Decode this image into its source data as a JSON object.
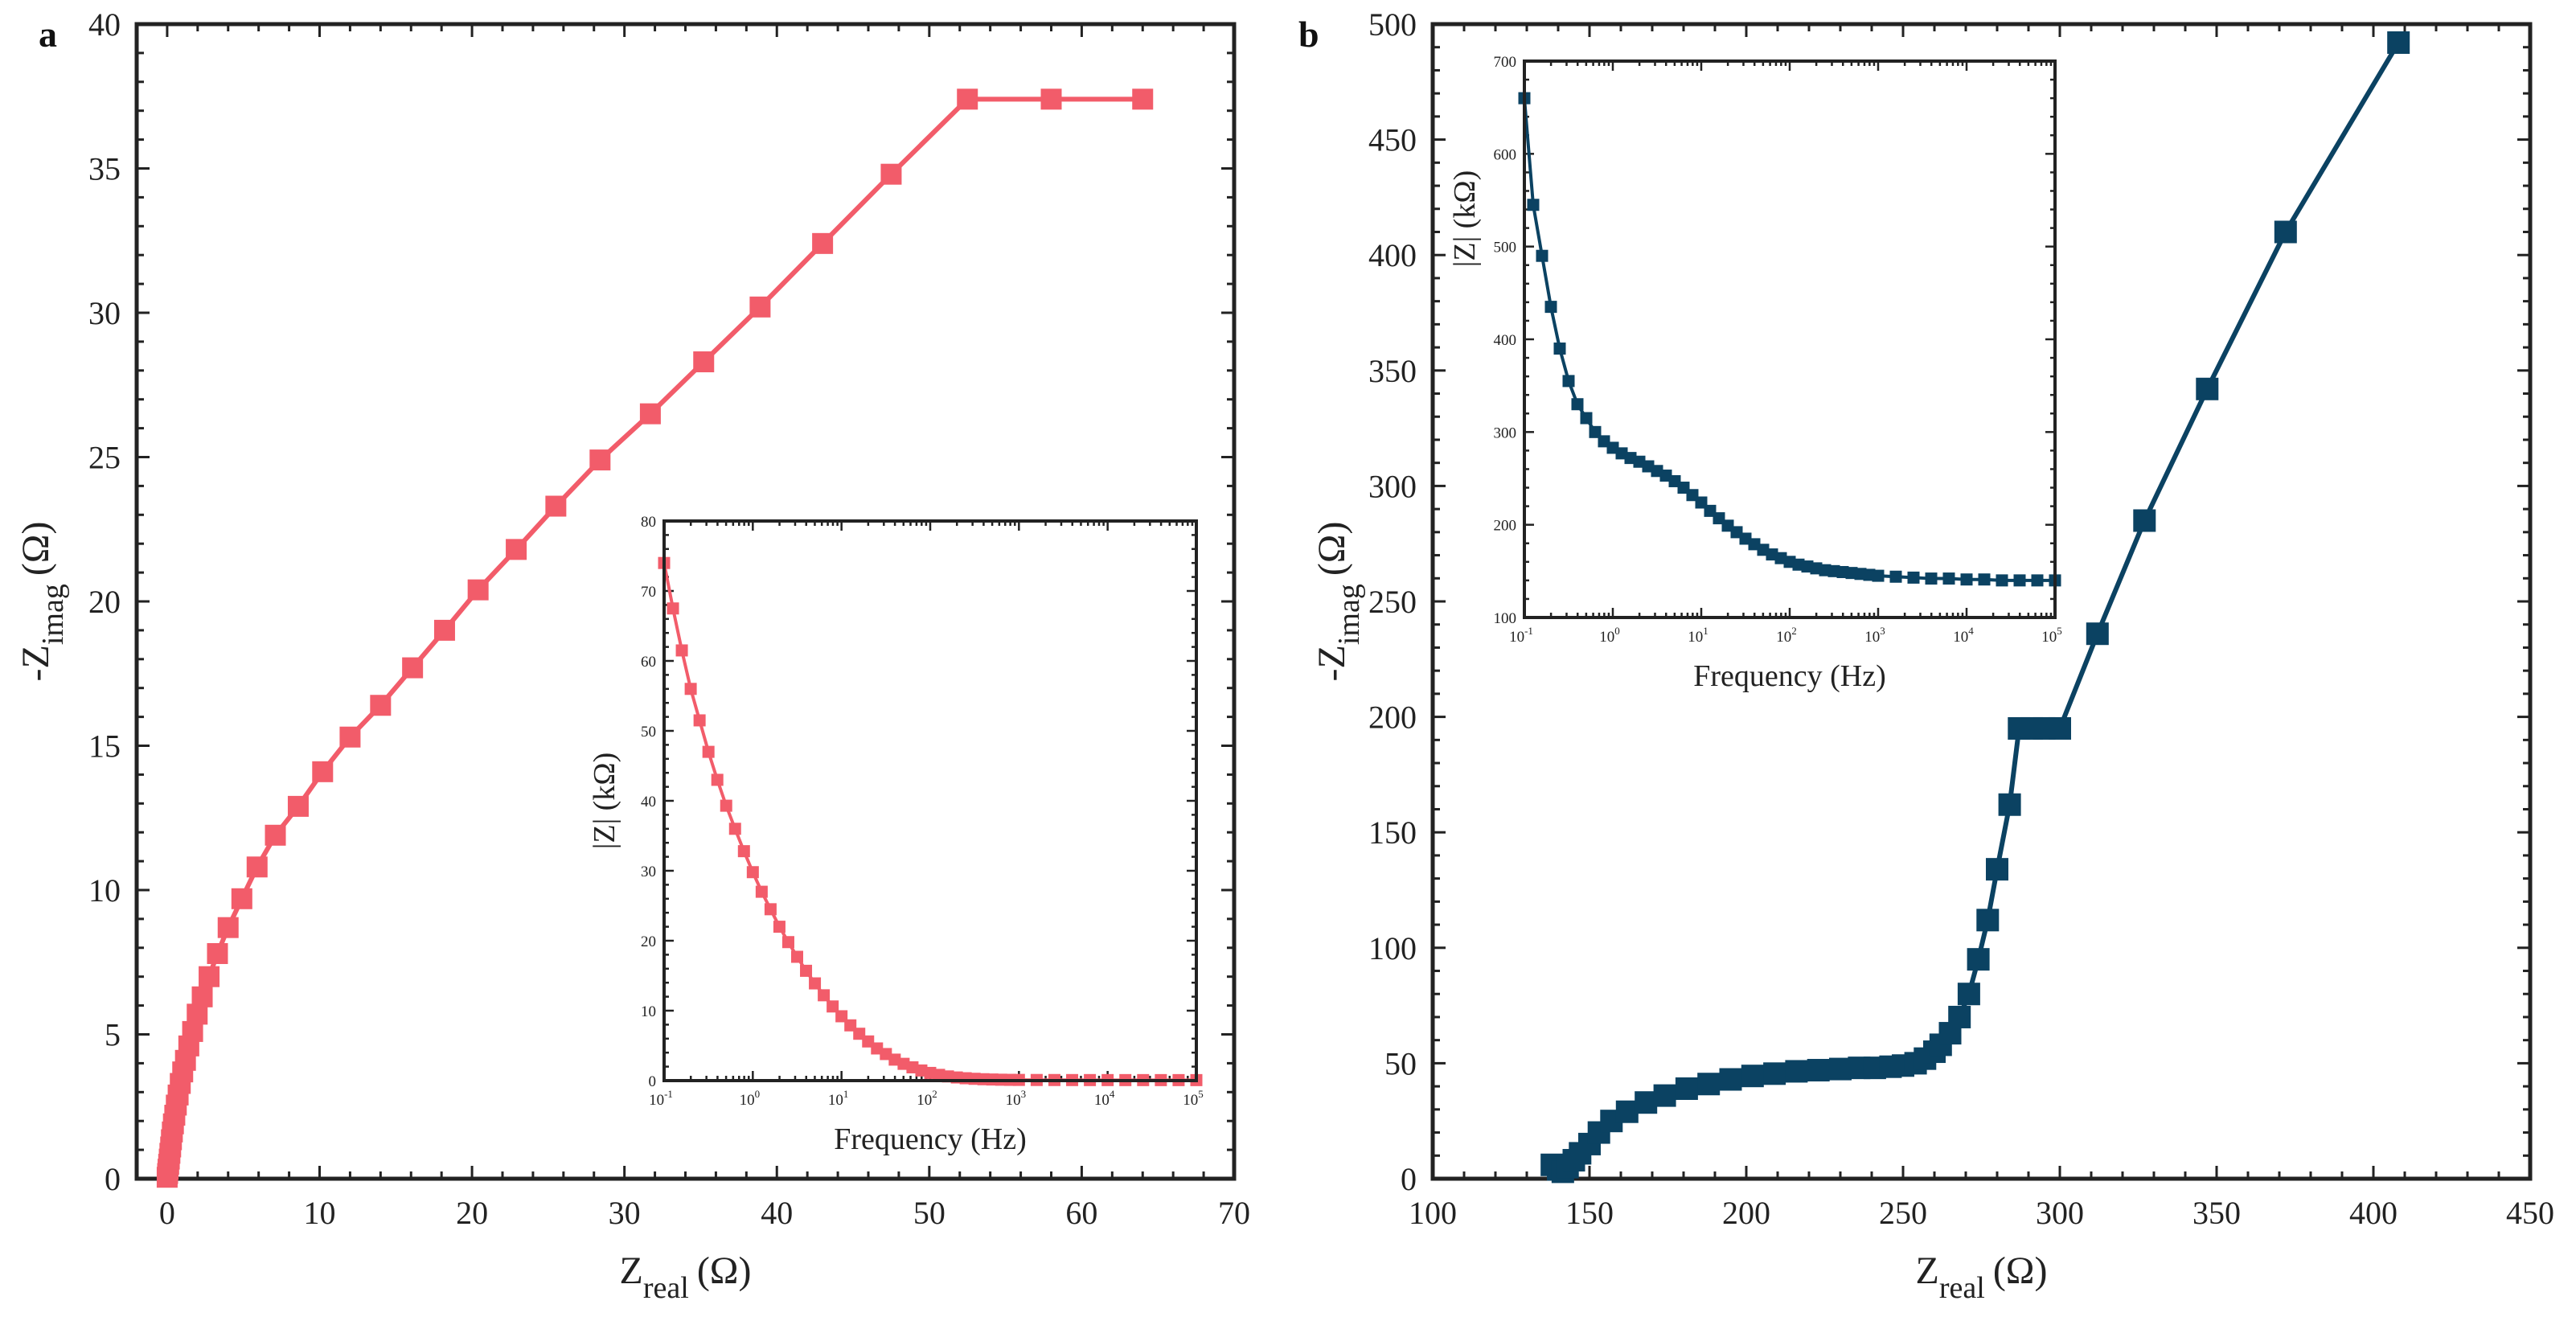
{
  "chart_data": [
    {
      "panel": "a",
      "type": "line",
      "color": "#f25c6a",
      "xlabel": "Z",
      "xlabel_sub": "real",
      "xlabel_unit": "(Ω)",
      "ylabel": "-Z",
      "ylabel_sub": "imag",
      "ylabel_unit": "(Ω)",
      "xlim": [
        -2,
        70
      ],
      "ylim": [
        0,
        40
      ],
      "xticks": [
        0,
        10,
        20,
        30,
        40,
        50,
        60,
        70
      ],
      "yticks": [
        0,
        5,
        10,
        15,
        20,
        25,
        30,
        35,
        40
      ],
      "x": [
        0,
        0.03,
        0.06,
        0.1,
        0.14,
        0.18,
        0.23,
        0.28,
        0.34,
        0.41,
        0.5,
        0.6,
        0.72,
        0.86,
        1.02,
        1.2,
        1.42,
        1.67,
        1.97,
        2.3,
        2.75,
        3.3,
        4,
        4.9,
        5.9,
        7.1,
        8.6,
        10.2,
        12,
        14,
        16.1,
        18.2,
        20.4,
        22.9,
        25.5,
        28.4,
        31.7,
        35.2,
        38.9,
        43,
        47.5,
        52.5,
        58,
        64
      ],
      "y": [
        0.05,
        0.18,
        0.33,
        0.5,
        0.68,
        0.88,
        1.1,
        1.35,
        1.62,
        1.9,
        2.2,
        2.55,
        2.9,
        3.3,
        3.7,
        4.1,
        4.6,
        5.1,
        5.7,
        6.3,
        7.0,
        7.8,
        8.7,
        9.7,
        10.8,
        11.9,
        12.9,
        14.1,
        15.3,
        16.4,
        17.7,
        19.0,
        20.4,
        21.8,
        23.3,
        24.9,
        26.5,
        28.3,
        30.2,
        32.4,
        34.8,
        37.4,
        37.4,
        37.4
      ],
      "inset": {
        "type": "line",
        "xscale": "log",
        "xlabel": "Frequency (Hz)",
        "ylabel": "|Z| (kΩ)",
        "ylim": [
          0,
          80
        ],
        "xlim_exp": [
          -1,
          5
        ],
        "yticks": [
          0,
          10,
          20,
          30,
          40,
          50,
          60,
          70,
          80
        ],
        "xtick_exps": [
          "-1",
          "0",
          "1",
          "2",
          "3",
          "4",
          "5"
        ],
        "xtick_base": "10",
        "log10_x": [
          -1,
          -0.9,
          -0.8,
          -0.7,
          -0.6,
          -0.5,
          -0.4,
          -0.3,
          -0.2,
          -0.1,
          0,
          0.1,
          0.2,
          0.3,
          0.4,
          0.5,
          0.6,
          0.7,
          0.8,
          0.9,
          1.0,
          1.1,
          1.2,
          1.3,
          1.4,
          1.5,
          1.6,
          1.7,
          1.8,
          1.9,
          2.0,
          2.1,
          2.2,
          2.3,
          2.4,
          2.5,
          2.6,
          2.7,
          2.8,
          2.9,
          3.0,
          3.2,
          3.4,
          3.6,
          3.8,
          4.0,
          4.2,
          4.4,
          4.6,
          4.8,
          5.0
        ],
        "y": [
          74,
          67.5,
          61.5,
          56,
          51.5,
          47,
          43,
          39.3,
          36,
          32.8,
          29.8,
          27,
          24.5,
          22,
          19.8,
          17.7,
          15.7,
          13.9,
          12.2,
          10.6,
          9.2,
          7.9,
          6.7,
          5.6,
          4.6,
          3.8,
          3.0,
          2.4,
          1.9,
          1.45,
          1.1,
          0.82,
          0.6,
          0.45,
          0.34,
          0.26,
          0.2,
          0.16,
          0.13,
          0.11,
          0.1,
          0.09,
          0.085,
          0.08,
          0.078,
          0.076,
          0.075,
          0.074,
          0.073,
          0.072,
          0.072
        ]
      }
    },
    {
      "panel": "b",
      "type": "line",
      "color": "#0b4262",
      "xlabel": "Z",
      "xlabel_sub": "real",
      "xlabel_unit": "(Ω)",
      "ylabel": "-Z",
      "ylabel_sub": "imag",
      "ylabel_unit": "(Ω)",
      "xlim": [
        100,
        450
      ],
      "ylim": [
        0,
        500
      ],
      "xticks": [
        100,
        150,
        200,
        250,
        300,
        350,
        400,
        450
      ],
      "yticks": [
        0,
        50,
        100,
        150,
        200,
        250,
        300,
        350,
        400,
        450,
        500
      ],
      "x": [
        138,
        140,
        141.5,
        143,
        145,
        147,
        150,
        153,
        157,
        162,
        168,
        174,
        181,
        188,
        195,
        202,
        209,
        216,
        223,
        230,
        236,
        241,
        246,
        250,
        254,
        257,
        260,
        262,
        265,
        268,
        271,
        274,
        277,
        280,
        284,
        287,
        291,
        295,
        300,
        312,
        327,
        347,
        372,
        408
      ],
      "y": [
        6,
        4,
        3,
        5,
        8,
        11,
        15,
        20,
        25,
        29,
        33,
        36,
        39,
        41,
        43,
        44.5,
        45.5,
        46.5,
        47,
        47.5,
        48,
        48,
        48.5,
        49,
        50,
        52,
        55,
        58,
        63,
        70,
        80,
        95,
        112,
        134,
        162,
        195,
        195,
        195,
        195,
        236,
        285,
        342,
        410,
        492
      ],
      "inset": {
        "type": "line",
        "xscale": "log",
        "xlabel": "Frequency (Hz)",
        "ylabel": "|Z| (kΩ)",
        "ylim": [
          100,
          700
        ],
        "xlim_exp": [
          -1,
          5
        ],
        "yticks": [
          100,
          200,
          300,
          400,
          500,
          600,
          700
        ],
        "xtick_exps": [
          "-1",
          "0",
          "1",
          "2",
          "3",
          "4",
          "5"
        ],
        "xtick_base": "10",
        "log10_x": [
          -1,
          -0.9,
          -0.8,
          -0.7,
          -0.6,
          -0.5,
          -0.4,
          -0.3,
          -0.2,
          -0.1,
          0,
          0.1,
          0.2,
          0.3,
          0.4,
          0.5,
          0.6,
          0.7,
          0.8,
          0.9,
          1.0,
          1.1,
          1.2,
          1.3,
          1.4,
          1.5,
          1.6,
          1.7,
          1.8,
          1.9,
          2.0,
          2.1,
          2.2,
          2.3,
          2.4,
          2.5,
          2.6,
          2.7,
          2.8,
          2.9,
          3.0,
          3.2,
          3.4,
          3.6,
          3.8,
          4.0,
          4.2,
          4.4,
          4.6,
          4.8,
          5.0
        ],
        "y": [
          660,
          545,
          490,
          435,
          390,
          355,
          330,
          315,
          300,
          290,
          283,
          277,
          272,
          268,
          263,
          258,
          253,
          247,
          240,
          232,
          224,
          215,
          207,
          199,
          192,
          185,
          179,
          173,
          168,
          164,
          160,
          157,
          155,
          153,
          151,
          150,
          149,
          148,
          147,
          146,
          145,
          144,
          143,
          142,
          142,
          141,
          141,
          140,
          140,
          140,
          140
        ]
      }
    }
  ]
}
